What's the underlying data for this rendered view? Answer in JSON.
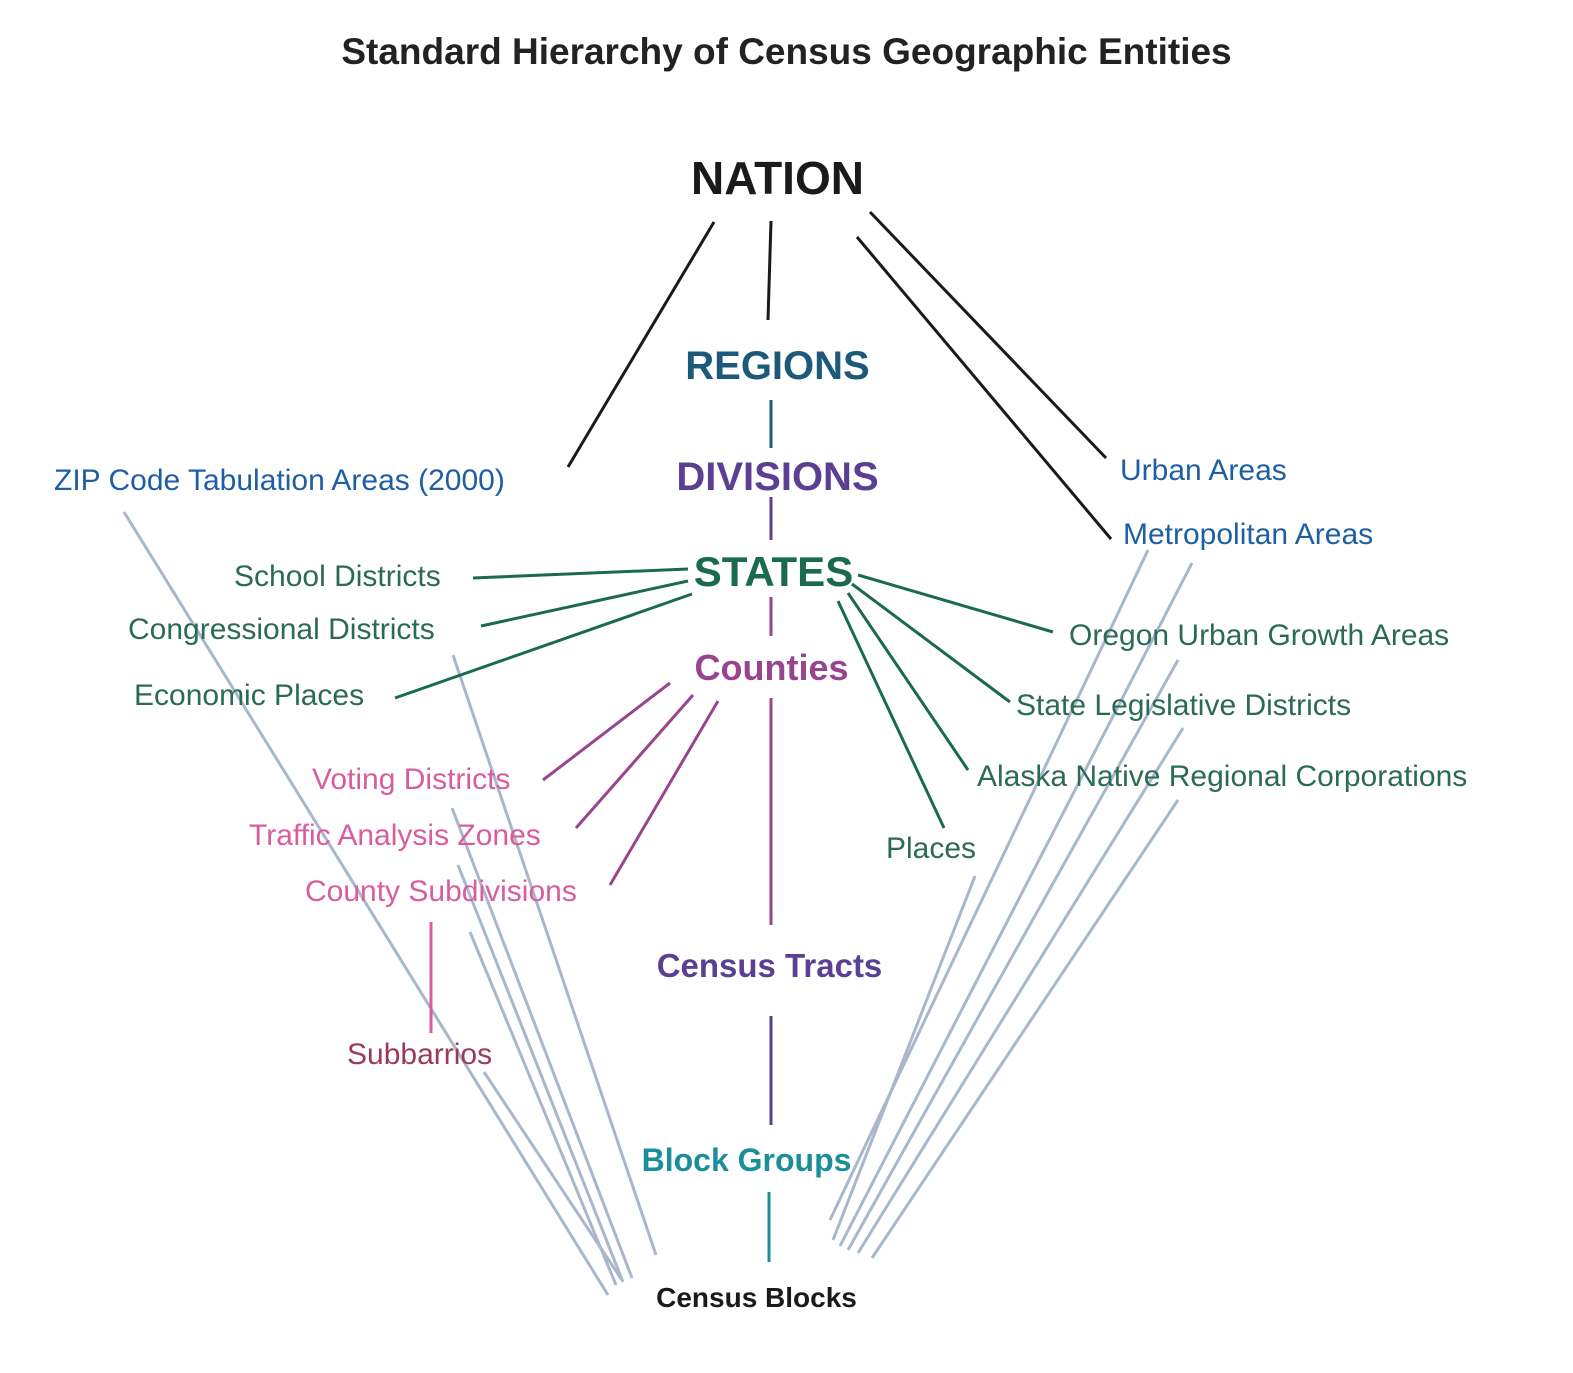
{
  "title": "Standard Hierarchy of Census Geographic Entities",
  "colors": {
    "black": "#1a1a1a",
    "regions": "#1d5a7a",
    "divisions": "#5a3f93",
    "states": "#1a6b4e",
    "counties": "#99448f",
    "pink": "#d85c9e",
    "subbarrios": "#9a3a5a",
    "tracts": "#5a3f93",
    "blockgroups": "#1a8f9a",
    "blue": "#1e5fa3",
    "green": "#2b6b55",
    "grey": "#a9b7cc",
    "blocks": "#1a1a1a"
  },
  "nodes": {
    "nation": "NATION",
    "regions": "REGIONS",
    "divisions": "DIVISIONS",
    "states": "STATES",
    "counties": "Counties",
    "census_tracts": "Census Tracts",
    "block_groups": "Block Groups",
    "census_blocks": "Census Blocks",
    "zip_code": "ZIP Code Tabulation Areas (2000)",
    "urban_areas": "Urban Areas",
    "metropolitan_areas": "Metropolitan Areas",
    "school_districts": "School Districts",
    "congressional_districts": "Congressional Districts",
    "economic_places": "Economic Places",
    "oregon_ugas": "Oregon Urban Growth Areas",
    "state_legislative": "State Legislative Districts",
    "alaska_native": "Alaska Native Regional Corporations",
    "places": "Places",
    "voting_districts": "Voting Districts",
    "traffic_zones": "Traffic Analysis Zones",
    "county_subdivisions": "County Subdivisions",
    "subbarrios": "Subbarrios"
  }
}
